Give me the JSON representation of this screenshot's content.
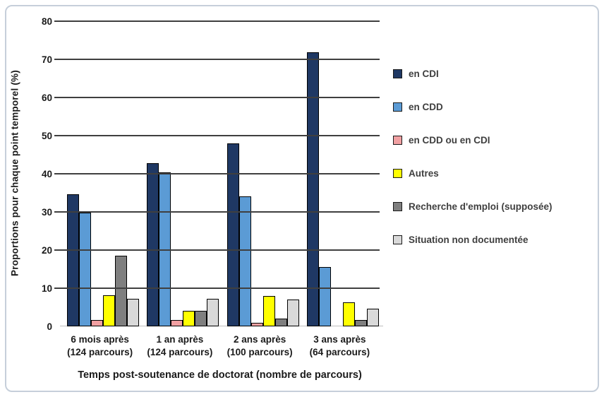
{
  "chart_data": {
    "type": "bar",
    "title": "",
    "xlabel": "Temps post-soutenance de doctorat (nombre de parcours)",
    "ylabel": "Proportions  pour chaque point temporel (%)",
    "ylim": [
      0,
      80
    ],
    "ytick_step": 10,
    "grid": true,
    "legend_position": "right",
    "categories": [
      {
        "label": "6 mois après",
        "sublabel": "(124 parcours)"
      },
      {
        "label": "1 an après",
        "sublabel": "(124 parcours)"
      },
      {
        "label": "2 ans après",
        "sublabel": "(100 parcours)"
      },
      {
        "label": "3 ans après",
        "sublabel": "(64 parcours)"
      }
    ],
    "series": [
      {
        "name": "en CDI",
        "color": "#1f3864",
        "values": [
          34.7,
          42.7,
          48.0,
          71.9
        ]
      },
      {
        "name": "en CDD",
        "color": "#5b9bd5",
        "values": [
          29.8,
          40.3,
          34.0,
          15.6
        ]
      },
      {
        "name": "en CDD ou en CDI",
        "color": "#f1a0a2",
        "values": [
          1.6,
          1.6,
          1.0,
          0.0
        ]
      },
      {
        "name": "Autres",
        "color": "#ffff00",
        "values": [
          8.1,
          4.0,
          8.0,
          6.3
        ]
      },
      {
        "name": "Recherche d'emploi (supposée)",
        "color": "#7f7f7f",
        "values": [
          18.5,
          4.0,
          2.0,
          1.6
        ]
      },
      {
        "name": "Situation non documentée",
        "color": "#d9d9d9",
        "values": [
          7.3,
          7.3,
          7.0,
          4.7
        ]
      }
    ]
  }
}
